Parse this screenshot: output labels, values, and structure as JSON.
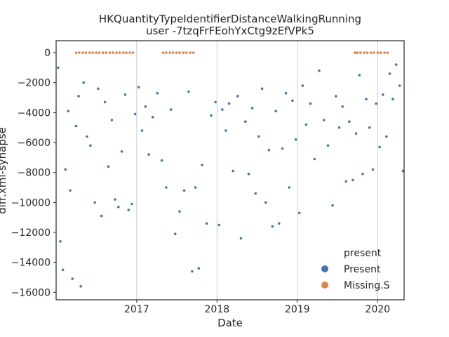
{
  "chart_data": {
    "type": "scatter",
    "title": "HKQuantityTypeIdentifierDistanceWalkingRunning",
    "subtitle": "user -7tzqFrFEohYxCtg9zEfVPk5",
    "xlabel": "Date",
    "ylabel": "diff.xml-synapse",
    "xlim": [
      "2016-01-01",
      "2020-04-30"
    ],
    "ylim": [
      -16500,
      800
    ],
    "x_ticks": [
      "2017",
      "2018",
      "2019",
      "2020"
    ],
    "x_tick_dates": [
      "2017-01-01",
      "2018-01-01",
      "2019-01-01",
      "2020-01-01"
    ],
    "y_ticks": [
      0,
      -2000,
      -4000,
      -6000,
      -8000,
      -10000,
      -12000,
      -14000,
      -16000
    ],
    "grid": "vertical",
    "legend": {
      "title": "present",
      "placement": "lower-right",
      "entries": [
        "Present",
        "Missing.S"
      ]
    },
    "colors": {
      "Present": "#4c72b0",
      "Missing.S": "#dd8452"
    },
    "series": [
      {
        "name": "Present",
        "points": [
          [
            "2016-01-10",
            -1000
          ],
          [
            "2016-01-20",
            -12600
          ],
          [
            "2016-02-01",
            -14500
          ],
          [
            "2016-02-12",
            -7800
          ],
          [
            "2016-02-25",
            -3900
          ],
          [
            "2016-03-05",
            -9200
          ],
          [
            "2016-03-15",
            -15100
          ],
          [
            "2016-04-01",
            -4900
          ],
          [
            "2016-04-12",
            -2900
          ],
          [
            "2016-04-22",
            -15600
          ],
          [
            "2016-05-05",
            -2000
          ],
          [
            "2016-05-20",
            -5600
          ],
          [
            "2016-06-05",
            -6200
          ],
          [
            "2016-06-25",
            -10000
          ],
          [
            "2016-07-10",
            -2400
          ],
          [
            "2016-07-25",
            -10900
          ],
          [
            "2016-08-10",
            -3300
          ],
          [
            "2016-08-25",
            -7600
          ],
          [
            "2016-09-10",
            -4500
          ],
          [
            "2016-09-25",
            -9800
          ],
          [
            "2016-10-10",
            -10300
          ],
          [
            "2016-10-25",
            -6600
          ],
          [
            "2016-11-10",
            -2800
          ],
          [
            "2016-11-25",
            -10500
          ],
          [
            "2016-12-10",
            -10100
          ],
          [
            "2016-12-25",
            -4100
          ],
          [
            "2017-01-10",
            -2300
          ],
          [
            "2017-01-25",
            -5200
          ],
          [
            "2017-02-10",
            -3600
          ],
          [
            "2017-02-25",
            -6800
          ],
          [
            "2017-03-15",
            -4300
          ],
          [
            "2017-04-05",
            -2700
          ],
          [
            "2017-04-25",
            -7200
          ],
          [
            "2017-05-15",
            -9000
          ],
          [
            "2017-06-05",
            -3800
          ],
          [
            "2017-06-25",
            -12100
          ],
          [
            "2017-07-15",
            -10600
          ],
          [
            "2017-08-05",
            -9200
          ],
          [
            "2017-08-25",
            -2600
          ],
          [
            "2017-09-10",
            -14600
          ],
          [
            "2017-09-25",
            -9000
          ],
          [
            "2017-10-10",
            -14400
          ],
          [
            "2017-10-25",
            -7500
          ],
          [
            "2017-11-15",
            -11400
          ],
          [
            "2017-12-05",
            -4200
          ],
          [
            "2017-12-25",
            -3300
          ],
          [
            "2018-01-10",
            -11500
          ],
          [
            "2018-01-25",
            -3800
          ],
          [
            "2018-02-10",
            -5200
          ],
          [
            "2018-02-25",
            -3400
          ],
          [
            "2018-03-15",
            -7900
          ],
          [
            "2018-04-05",
            -2900
          ],
          [
            "2018-04-20",
            -12400
          ],
          [
            "2018-05-10",
            -4600
          ],
          [
            "2018-05-25",
            -8100
          ],
          [
            "2018-06-10",
            -3700
          ],
          [
            "2018-06-25",
            -9400
          ],
          [
            "2018-07-10",
            -5600
          ],
          [
            "2018-07-25",
            -2400
          ],
          [
            "2018-08-10",
            -10000
          ],
          [
            "2018-08-25",
            -6500
          ],
          [
            "2018-09-10",
            -11600
          ],
          [
            "2018-09-25",
            -3900
          ],
          [
            "2018-10-10",
            -11400
          ],
          [
            "2018-10-25",
            -6400
          ],
          [
            "2018-11-10",
            -2700
          ],
          [
            "2018-11-25",
            -9000
          ],
          [
            "2018-12-10",
            -3200
          ],
          [
            "2018-12-25",
            -5800
          ],
          [
            "2019-01-10",
            -10700
          ],
          [
            "2019-01-25",
            -2200
          ],
          [
            "2019-02-10",
            -4800
          ],
          [
            "2019-03-01",
            -3400
          ],
          [
            "2019-03-20",
            -7100
          ],
          [
            "2019-04-10",
            -1200
          ],
          [
            "2019-05-01",
            -4500
          ],
          [
            "2019-05-20",
            -6200
          ],
          [
            "2019-06-10",
            -10200
          ],
          [
            "2019-06-25",
            -2900
          ],
          [
            "2019-07-10",
            -5000
          ],
          [
            "2019-07-25",
            -3600
          ],
          [
            "2019-08-10",
            -8600
          ],
          [
            "2019-08-25",
            -4600
          ],
          [
            "2019-09-10",
            -8500
          ],
          [
            "2019-09-25",
            -5400
          ],
          [
            "2019-10-10",
            -1500
          ],
          [
            "2019-10-25",
            -8100
          ],
          [
            "2019-11-10",
            -3100
          ],
          [
            "2019-11-25",
            -5000
          ],
          [
            "2019-12-10",
            -7800
          ],
          [
            "2019-12-25",
            -3400
          ],
          [
            "2020-01-10",
            -6300
          ],
          [
            "2020-01-25",
            -2800
          ],
          [
            "2020-02-10",
            -5600
          ],
          [
            "2020-02-25",
            -1400
          ],
          [
            "2020-03-10",
            -3100
          ],
          [
            "2020-03-25",
            -800
          ],
          [
            "2020-04-10",
            -2200
          ],
          [
            "2020-04-25",
            -7900
          ]
        ]
      },
      {
        "name": "Missing.S",
        "points": [
          [
            "2016-04-01",
            0
          ],
          [
            "2016-04-15",
            0
          ],
          [
            "2016-05-01",
            0
          ],
          [
            "2016-05-15",
            0
          ],
          [
            "2016-06-01",
            0
          ],
          [
            "2016-06-15",
            0
          ],
          [
            "2016-07-01",
            0
          ],
          [
            "2016-07-15",
            0
          ],
          [
            "2016-08-01",
            0
          ],
          [
            "2016-08-15",
            0
          ],
          [
            "2016-09-01",
            0
          ],
          [
            "2016-09-15",
            0
          ],
          [
            "2016-10-01",
            0
          ],
          [
            "2016-10-15",
            0
          ],
          [
            "2016-11-01",
            0
          ],
          [
            "2016-11-15",
            0
          ],
          [
            "2016-12-01",
            0
          ],
          [
            "2016-12-15",
            0
          ],
          [
            "2017-05-01",
            0
          ],
          [
            "2017-05-15",
            0
          ],
          [
            "2017-06-01",
            0
          ],
          [
            "2017-06-15",
            0
          ],
          [
            "2017-07-01",
            0
          ],
          [
            "2017-07-15",
            0
          ],
          [
            "2017-08-01",
            0
          ],
          [
            "2017-08-15",
            0
          ],
          [
            "2017-09-01",
            0
          ],
          [
            "2017-09-15",
            0
          ],
          [
            "2019-09-20",
            0
          ],
          [
            "2019-10-01",
            0
          ],
          [
            "2019-10-15",
            0
          ],
          [
            "2019-11-01",
            0
          ],
          [
            "2019-11-15",
            0
          ],
          [
            "2019-12-01",
            0
          ],
          [
            "2019-12-15",
            0
          ],
          [
            "2020-01-01",
            0
          ],
          [
            "2020-01-15",
            0
          ],
          [
            "2020-02-01",
            0
          ],
          [
            "2020-02-15",
            0
          ]
        ]
      }
    ]
  }
}
